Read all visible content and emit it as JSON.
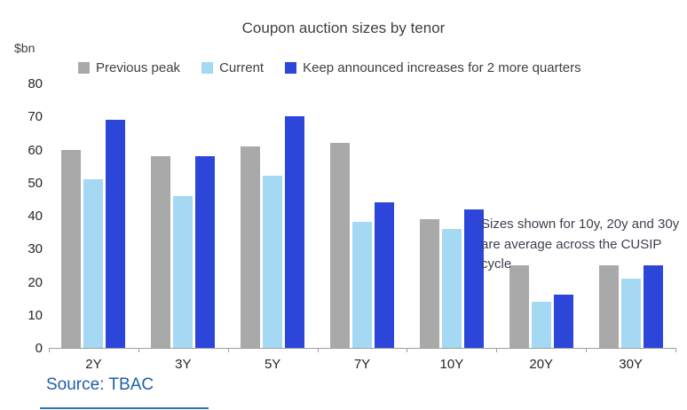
{
  "chart_data": {
    "type": "bar",
    "title": "Coupon auction sizes by tenor",
    "ylabel": "$bn",
    "xlabel": "",
    "categories": [
      "2Y",
      "3Y",
      "5Y",
      "7Y",
      "10Y",
      "20Y",
      "30Y"
    ],
    "series": [
      {
        "name": "Previous peak",
        "color": "#a9a9a9",
        "values": [
          60,
          58,
          61,
          62,
          39,
          25,
          25
        ]
      },
      {
        "name": "Current",
        "color": "#a5d8f3",
        "values": [
          51,
          46,
          52,
          38,
          36,
          14,
          21
        ]
      },
      {
        "name": "Keep announced increases for 2 more quarters",
        "color": "#2b46d9",
        "values": [
          69,
          58,
          70,
          44,
          42,
          16,
          25
        ]
      }
    ],
    "ylim": [
      0,
      80
    ],
    "yticks": [
      0,
      10,
      20,
      30,
      40,
      50,
      60,
      70,
      80
    ],
    "grid": false,
    "legend_position": "top-left",
    "annotation": "Sizes shown for 10y, 20y and 30y are average across the CUSIP cycle"
  },
  "source": "Source: TBAC",
  "colors": {
    "accent_blue": "#2b46d9",
    "light_blue": "#a5d8f3",
    "gray": "#a9a9a9",
    "source_text": "#1f5fa6",
    "axis_line": "#9e9e9e",
    "title_text": "#404040"
  }
}
